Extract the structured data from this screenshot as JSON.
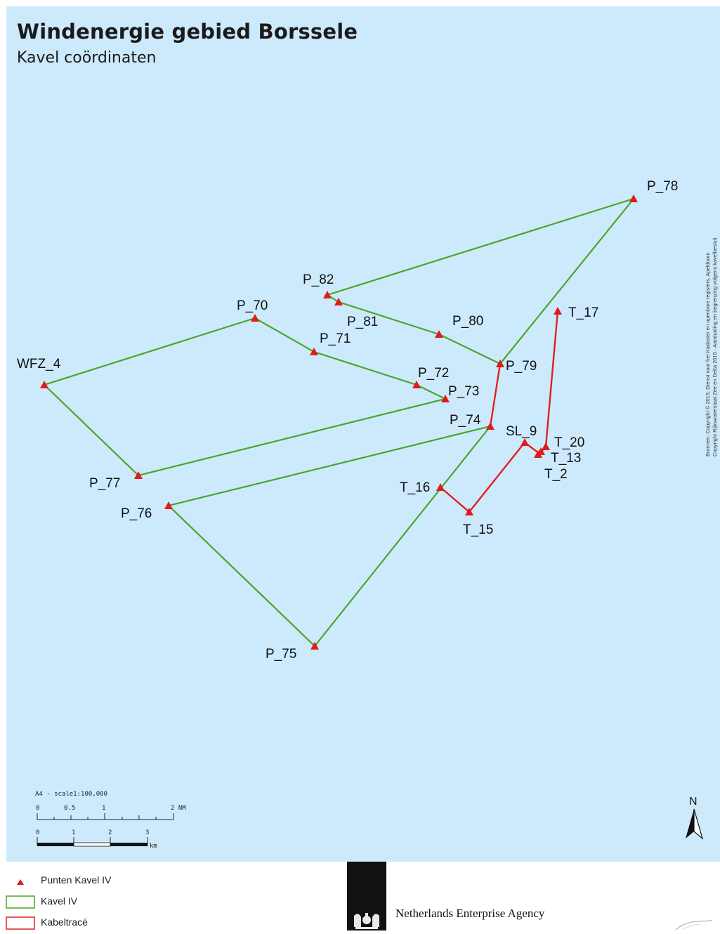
{
  "header": {
    "title": "Windenergie gebied Borssele",
    "subtitle": "Kavel coördinaten"
  },
  "credits": {
    "line1": "Bronnen: Copyright © 2015. Dienst voor het Kadaster en openbare registers, Apeldoorn",
    "line2": "Copyright Rijkswaterstaat Zee en Delta 2015 · Aanduiding en begrenzing volgens kavelbesluit"
  },
  "colors": {
    "sea": "#cdeafc",
    "kavel_line": "#4aa629",
    "kabel_line": "#e02020",
    "point": "#e01b1b"
  },
  "points": {
    "WFZ_4": "WFZ_4",
    "P_70": "P_70",
    "P_71": "P_71",
    "P_72": "P_72",
    "P_73": "P_73",
    "P_74": "P_74",
    "P_75": "P_75",
    "P_76": "P_76",
    "P_77": "P_77",
    "P_78": "P_78",
    "P_79": "P_79",
    "P_80": "P_80",
    "P_81": "P_81",
    "P_82": "P_82",
    "T_17": "T_17",
    "SL_9": "SL_9",
    "T_20": "T_20",
    "T_13": "T_13",
    "T_2": "T_2",
    "T_16": "T_16",
    "T_15": "T_15"
  },
  "scalebar": {
    "caption": "A4 - scale1:100,000",
    "nm_ticks": [
      "0",
      "0.5",
      "1",
      "2 NM"
    ],
    "km_ticks": [
      "0",
      "1",
      "2",
      "3"
    ],
    "km_unit": "km"
  },
  "north_arrow": {
    "label": "N",
    "icon": "north-arrow-icon"
  },
  "legend": {
    "items": [
      {
        "label": "Punten Kavel IV",
        "symbol": "triangle"
      },
      {
        "label": "Kavel IV",
        "symbol": "green-box"
      },
      {
        "label": "Kabeltracé",
        "symbol": "red-box"
      }
    ]
  },
  "footer": {
    "agency": "Netherlands Enterprise Agency"
  }
}
